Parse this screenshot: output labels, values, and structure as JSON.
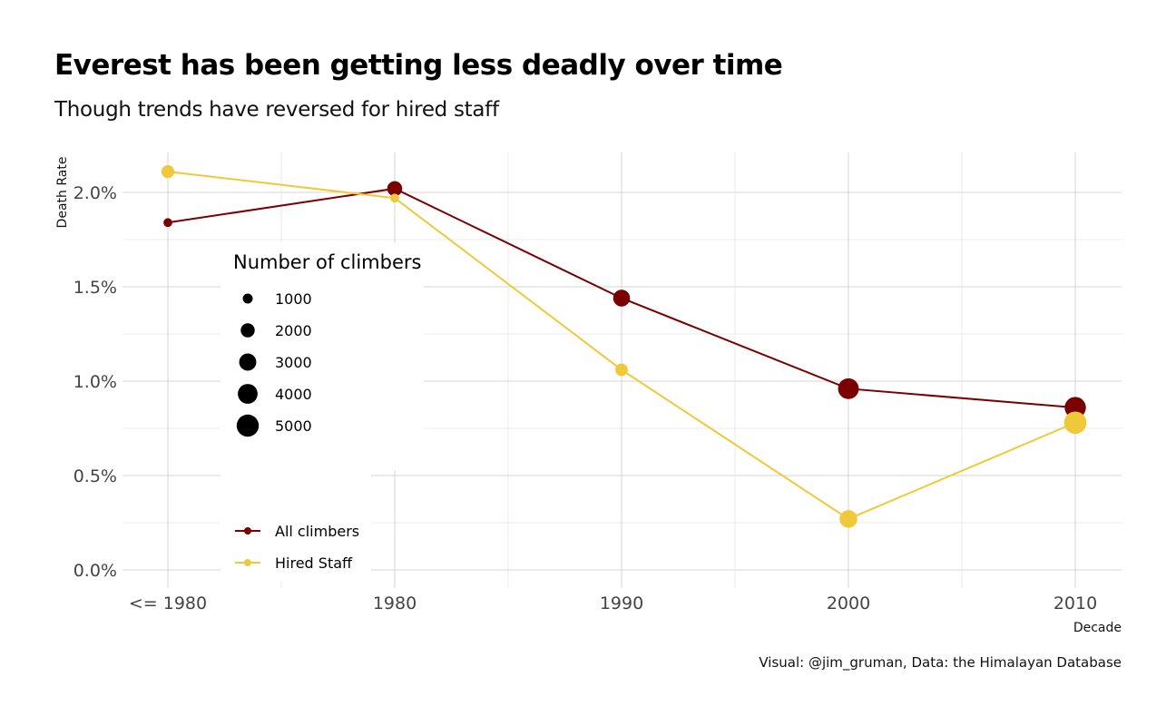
{
  "chart_data": {
    "type": "line",
    "title": "Everest has been getting less deadly over time",
    "subtitle": "Though trends have reversed for hired staff",
    "xlabel": "Decade",
    "ylabel": "Death Rate",
    "caption": "Visual: @jim_gruman, Data:  the Himalayan Database",
    "categories": [
      "<= 1980",
      "1980",
      "1990",
      "2000",
      "2010"
    ],
    "y_ticks": [
      "0.0%",
      "0.5%",
      "1.0%",
      "1.5%",
      "2.0%"
    ],
    "ylim": [
      0,
      2.2
    ],
    "grid": true,
    "series": [
      {
        "name": "All climbers",
        "color": "#7b0000",
        "values": [
          1.84,
          2.02,
          1.44,
          0.96,
          0.86
        ],
        "climbers": [
          800,
          2300,
          2900,
          4400,
          4600
        ]
      },
      {
        "name": "Hired Staff",
        "color": "#f0c93a",
        "values": [
          2.11,
          1.97,
          1.06,
          0.27,
          0.78
        ],
        "climbers": [
          1700,
          800,
          1600,
          3200,
          5100
        ]
      }
    ],
    "size_legend": {
      "title": "Number of climbers",
      "entries": [
        {
          "label": "1000",
          "value": 1000
        },
        {
          "label": "2000",
          "value": 2000
        },
        {
          "label": "3000",
          "value": 3000
        },
        {
          "label": "4000",
          "value": 4000
        },
        {
          "label": "5000",
          "value": 5000
        }
      ]
    },
    "color_legend": {
      "entries": [
        "All climbers",
        "Hired Staff"
      ]
    }
  }
}
